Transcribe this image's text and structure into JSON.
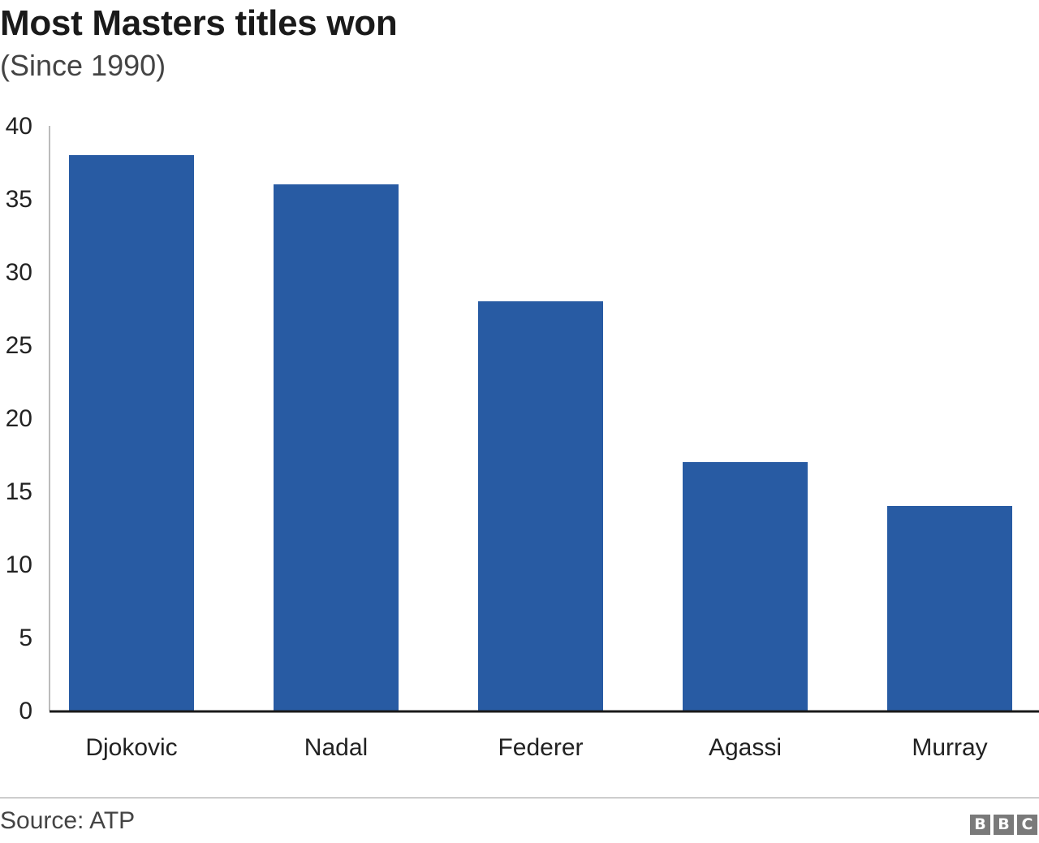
{
  "chart_data": {
    "type": "bar",
    "title": "Most Masters titles won",
    "subtitle": "(Since 1990)",
    "categories": [
      "Djokovic",
      "Nadal",
      "Federer",
      "Agassi",
      "Murray"
    ],
    "values": [
      38,
      36,
      28,
      17,
      14
    ],
    "ylim": [
      0,
      40
    ],
    "yticks": [
      0,
      5,
      10,
      15,
      20,
      25,
      30,
      35,
      40
    ],
    "grid": false,
    "legend": "none",
    "bar_color": "#285ba3"
  },
  "footer": {
    "source": "Source: ATP",
    "logo_letters": [
      "B",
      "B",
      "C"
    ]
  }
}
